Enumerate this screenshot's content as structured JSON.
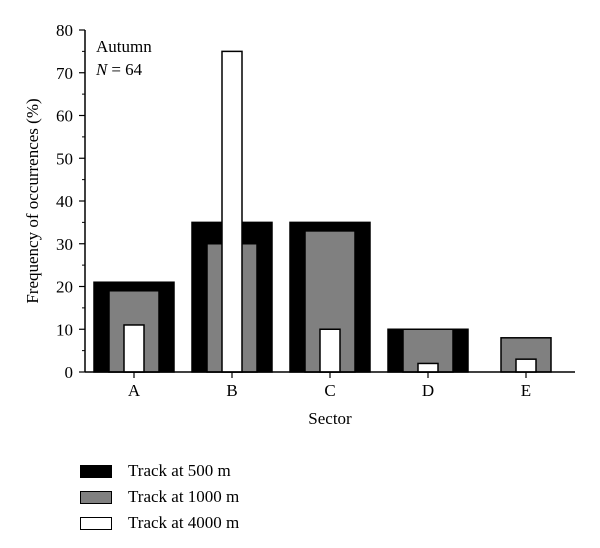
{
  "chart_data": {
    "type": "bar",
    "annotation": {
      "season": "Autumn",
      "n_label": "N",
      "n_value": "= 64"
    },
    "xlabel": "Sector",
    "ylabel": "Frequency of occurrences (%)",
    "categories": [
      "A",
      "B",
      "C",
      "D",
      "E"
    ],
    "ylim": [
      0,
      80
    ],
    "yticks": [
      0,
      10,
      20,
      30,
      40,
      50,
      60,
      70,
      80
    ],
    "grid": false,
    "legend_position": "bottom",
    "series": [
      {
        "name": "Track at 500 m",
        "color": "#000000",
        "values": [
          21,
          35,
          35,
          10,
          0
        ]
      },
      {
        "name": "Track at 1000 m",
        "color": "#808080",
        "values": [
          19,
          30,
          33,
          10,
          8
        ]
      },
      {
        "name": "Track at 4000 m",
        "color": "#ffffff",
        "values": [
          11,
          75,
          10,
          2,
          3
        ]
      }
    ]
  }
}
